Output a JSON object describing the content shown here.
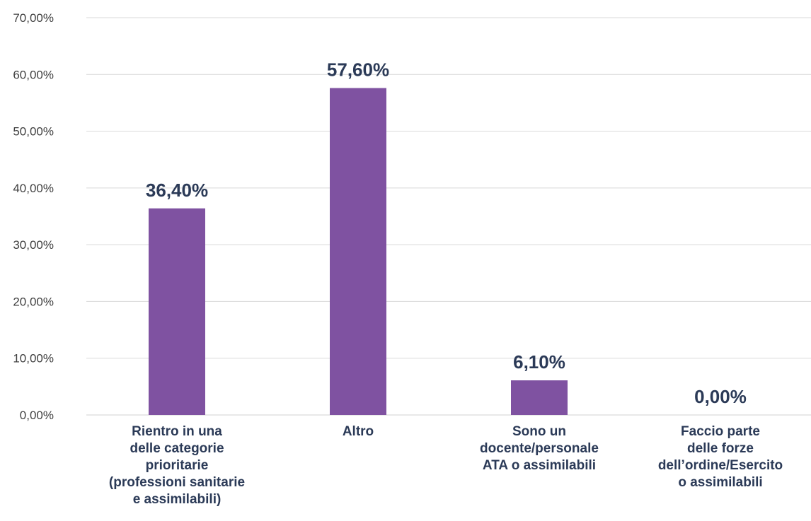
{
  "chart_data": {
    "type": "bar",
    "title": "",
    "xlabel": "",
    "ylabel": "",
    "categories": [
      [
        "Rientro in una",
        "delle categorie",
        "prioritarie",
        "(professioni sanitarie",
        "e assimilabili)"
      ],
      [
        "Altro"
      ],
      [
        "Sono un",
        "docente/personale",
        "ATA o assimilabili"
      ],
      [
        "Faccio parte",
        "delle forze",
        "dell’ordine/Esercito",
        "o assimilabili"
      ]
    ],
    "values": [
      36.4,
      57.6,
      6.1,
      0.0
    ],
    "value_labels": [
      "36,40%",
      "57,60%",
      "6,10%",
      "0,00%"
    ],
    "ylim": [
      0,
      70
    ],
    "yticks": [
      0,
      10,
      20,
      30,
      40,
      50,
      60,
      70
    ],
    "ytick_labels": [
      "0,00%",
      "10,00%",
      "20,00%",
      "30,00%",
      "40,00%",
      "50,00%",
      "60,00%",
      "70,00%"
    ],
    "grid": true,
    "legend": "none",
    "colors": {
      "bar": "#7f52a1",
      "label_text": "#2b3a57",
      "tick_text": "#404040",
      "grid": "#d9d9d9"
    }
  }
}
